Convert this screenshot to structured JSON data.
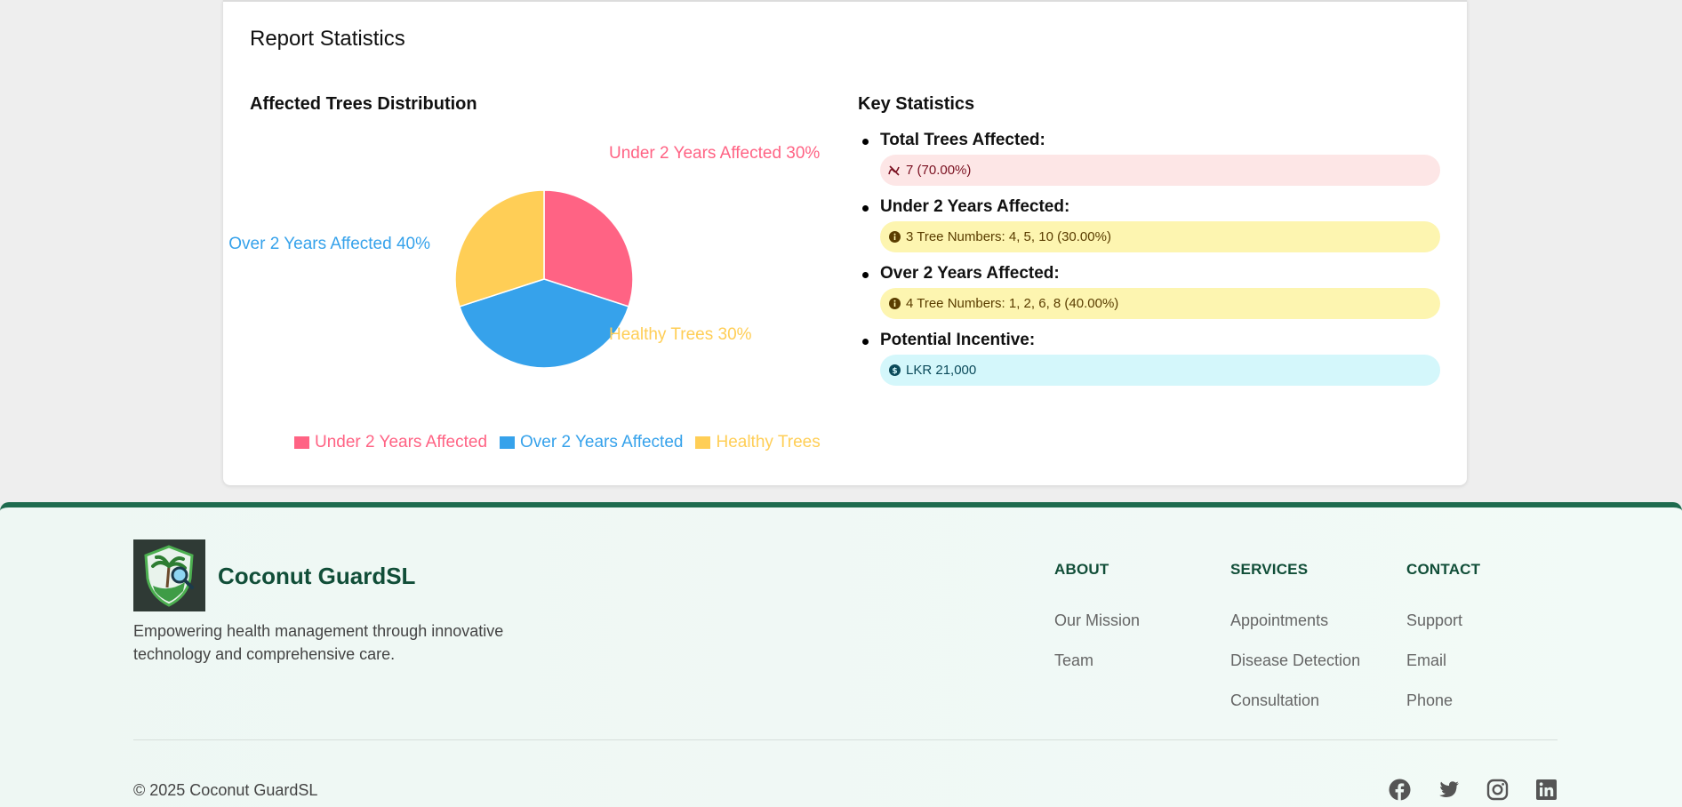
{
  "report": {
    "title": "Report Statistics",
    "chart_title": "Affected Trees Distribution",
    "stats_title": "Key Statistics"
  },
  "chart_data": {
    "type": "pie",
    "categories": [
      "Under 2 Years Affected",
      "Over 2 Years Affected",
      "Healthy Trees"
    ],
    "values": [
      30,
      40,
      30
    ],
    "labels": [
      "Under 2 Years Affected 30%",
      "Over 2 Years Affected 40%",
      "Healthy Trees 30%"
    ],
    "colors": [
      "#ff6384",
      "#36a2eb",
      "#ffce56"
    ],
    "legend_position": "bottom"
  },
  "stats": [
    {
      "label": "Total Trees Affected:",
      "value": "7 (70.00%)",
      "icon": "slash-icon",
      "variant": "danger"
    },
    {
      "label": "Under 2 Years Affected:",
      "value": "3 Tree Numbers: 4, 5, 10 (30.00%)",
      "icon": "info-icon",
      "variant": "warning"
    },
    {
      "label": "Over 2 Years Affected:",
      "value": "4 Tree Numbers: 1, 2, 6, 8 (40.00%)",
      "icon": "info-icon",
      "variant": "warning"
    },
    {
      "label": "Potential Incentive:",
      "value": "LKR 21,000",
      "icon": "dollar-icon",
      "variant": "info"
    }
  ],
  "footer": {
    "brand": "Coconut GuardSL",
    "description": "Empowering health management through innovative technology and comprehensive care.",
    "columns": [
      {
        "title": "ABOUT",
        "links": [
          "Our Mission",
          "Team"
        ]
      },
      {
        "title": "SERVICES",
        "links": [
          "Appointments",
          "Disease Detection",
          "Consultation"
        ]
      },
      {
        "title": "CONTACT",
        "links": [
          "Support",
          "Email",
          "Phone"
        ]
      }
    ],
    "copyright": "© 2025 Coconut GuardSL",
    "social": [
      "facebook-icon",
      "twitter-icon",
      "instagram-icon",
      "linkedin-icon"
    ]
  }
}
